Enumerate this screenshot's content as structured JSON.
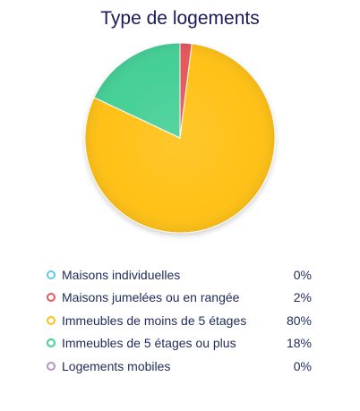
{
  "chart_data": {
    "type": "pie",
    "title": "Type de logements",
    "categories": [
      "Maisons individuelles",
      "Maisons jumelées ou en rangée",
      "Immeubles de moins de 5 étages",
      "Immeubles de 5 étages ou plus",
      "Logements mobiles"
    ],
    "values": [
      0,
      2,
      80,
      18,
      0
    ],
    "value_labels": [
      "0%",
      "2%",
      "80%",
      "18%",
      "0%"
    ],
    "colors": [
      "#5fc9e6",
      "#e5595c",
      "#ffc118",
      "#44cf96",
      "#b592cf"
    ],
    "start_angle_deg": 0,
    "direction": "clockwise",
    "legend_placement": "bottom"
  }
}
